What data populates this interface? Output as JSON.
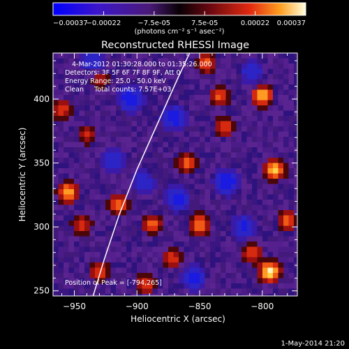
{
  "chart_data": {
    "type": "heatmap",
    "title": "Reconstructed RHESSI Image",
    "xlabel": "Heliocentric X (arcsec)",
    "ylabel": "Heliocentric Y (arcsec)",
    "xlim": [
      -967,
      -772
    ],
    "ylim": [
      246,
      436
    ],
    "x_ticks": [
      -950,
      -900,
      -850,
      -800
    ],
    "y_ticks": [
      250,
      300,
      350,
      400
    ],
    "colorbar": {
      "unit_label": "(photons cm⁻² s⁻¹ asec⁻²)",
      "min": -0.00037,
      "max": 0.00037,
      "ticks": [
        "-0.00037",
        "-0.00022",
        "-7.5e-05",
        "7.5e-05",
        "0.00022",
        "0.00037"
      ]
    },
    "annotations": {
      "time_range": "4-Mar-2012 01:30:28.000 to 01:35:26.000",
      "detectors": "Detectors: 3F 5F 6F 7F 8F 9F, Att 0",
      "energy": "Energy Range: 25.0 - 50.0 keV",
      "clean": "Clean     Total counts: 7.57E+03",
      "peak": "Position of Peak = [-794,265]"
    },
    "limb_curve": [
      [
        -935,
        246
      ],
      [
        -926,
        275
      ],
      [
        -914,
        310
      ],
      [
        -900,
        345
      ],
      [
        -884,
        380
      ],
      [
        -868,
        415
      ],
      [
        -858,
        436
      ]
    ],
    "sources": [
      {
        "x": -794,
        "y": 265,
        "intensity": 1.0
      },
      {
        "x": -800,
        "y": 403,
        "intensity": 0.85
      },
      {
        "x": -790,
        "y": 345,
        "intensity": 0.8
      },
      {
        "x": -955,
        "y": 327,
        "intensity": 0.75
      },
      {
        "x": -850,
        "y": 302,
        "intensity": 0.65
      },
      {
        "x": -915,
        "y": 318,
        "intensity": 0.55
      },
      {
        "x": -888,
        "y": 302,
        "intensity": 0.55
      },
      {
        "x": -834,
        "y": 402,
        "intensity": 0.5
      },
      {
        "x": -860,
        "y": 350,
        "intensity": 0.5
      },
      {
        "x": -930,
        "y": 265,
        "intensity": 0.45
      },
      {
        "x": -830,
        "y": 378,
        "intensity": 0.45
      },
      {
        "x": -960,
        "y": 392,
        "intensity": 0.45
      },
      {
        "x": -845,
        "y": 428,
        "intensity": 0.5
      },
      {
        "x": -808,
        "y": 280,
        "intensity": 0.5
      },
      {
        "x": -872,
        "y": 275,
        "intensity": 0.45
      },
      {
        "x": -780,
        "y": 305,
        "intensity": 0.55
      },
      {
        "x": -944,
        "y": 302,
        "intensity": 0.4
      },
      {
        "x": -940,
        "y": 372,
        "intensity": 0.35
      },
      {
        "x": -930,
        "y": 415,
        "intensity": 0.35
      },
      {
        "x": -893,
        "y": 255,
        "intensity": 0.45
      }
    ],
    "sinks": [
      {
        "x": -905,
        "y": 400,
        "intensity": 0.5
      },
      {
        "x": -870,
        "y": 385,
        "intensity": 0.45
      },
      {
        "x": -828,
        "y": 335,
        "intensity": 0.5
      },
      {
        "x": -815,
        "y": 300,
        "intensity": 0.4
      },
      {
        "x": -920,
        "y": 352,
        "intensity": 0.35
      },
      {
        "x": -895,
        "y": 335,
        "intensity": 0.35
      },
      {
        "x": -868,
        "y": 322,
        "intensity": 0.45
      },
      {
        "x": -855,
        "y": 260,
        "intensity": 0.4
      },
      {
        "x": -808,
        "y": 420,
        "intensity": 0.35
      },
      {
        "x": -935,
        "y": 430,
        "intensity": 0.35
      }
    ]
  },
  "footer": {
    "date": "1-May-2014 21:20"
  }
}
